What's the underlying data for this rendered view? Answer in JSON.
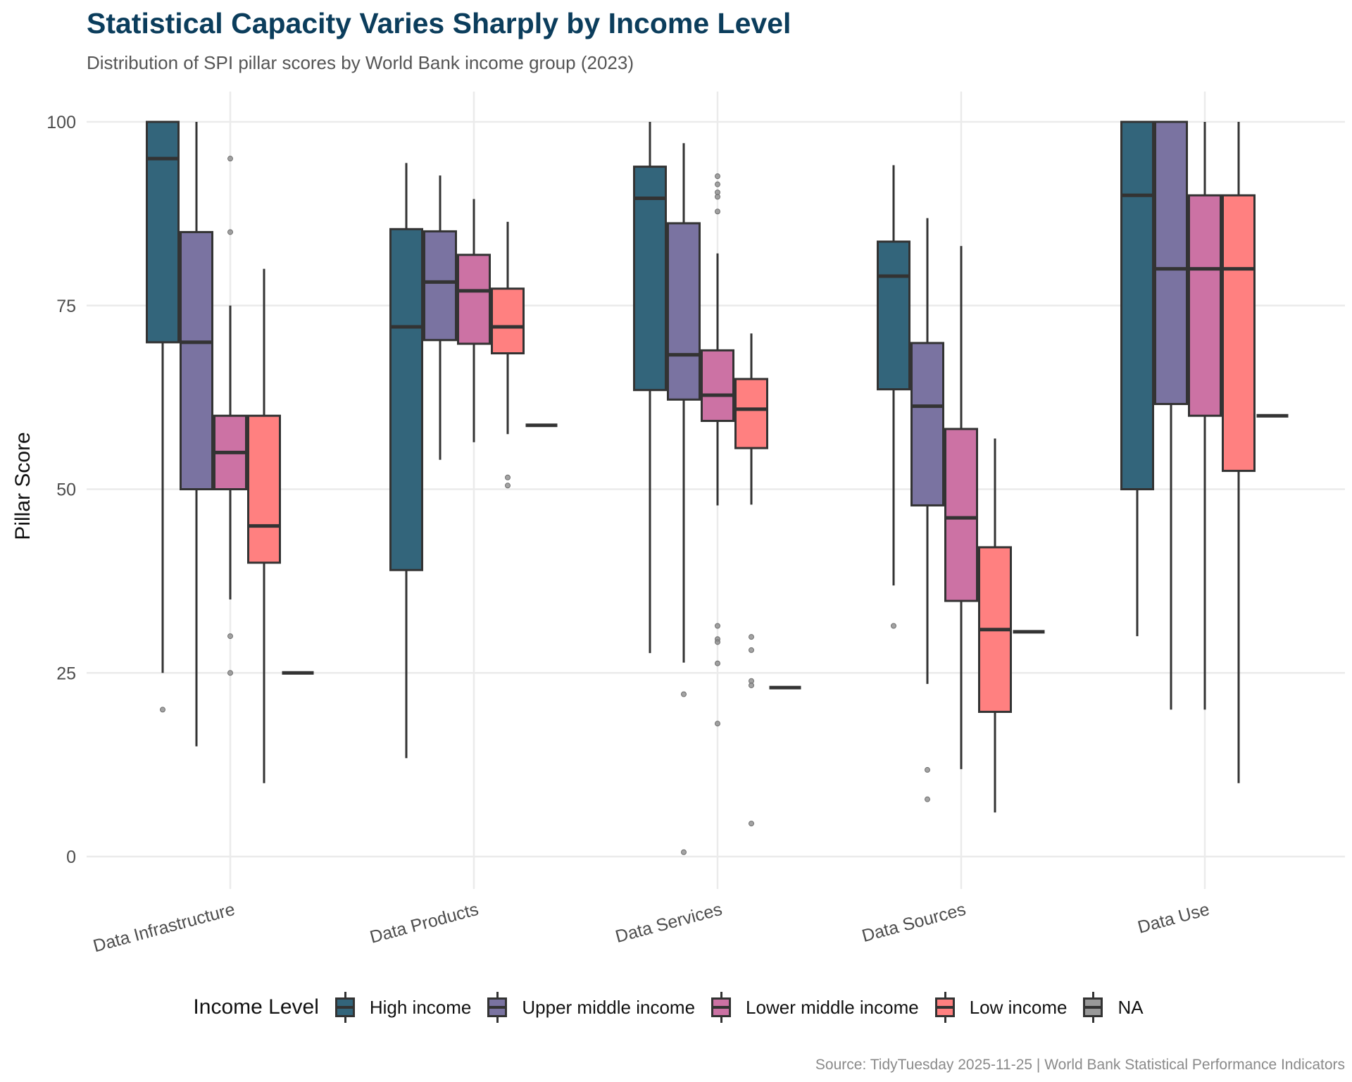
{
  "header": {
    "title": "Statistical Capacity Varies Sharply by Income Level",
    "subtitle": "Distribution of SPI pillar scores by World Bank income group (2023)"
  },
  "caption": "Source: TidyTuesday 2025-11-25 | World Bank Statistical Performance Indicators",
  "chart_data": {
    "type": "boxplot",
    "title": "Statistical Capacity Varies Sharply by Income Level",
    "subtitle": "Distribution of SPI pillar scores by World Bank income group (2023)",
    "xlabel": "",
    "ylabel": "Pillar Score",
    "ylim": [
      0,
      100
    ],
    "yticks": [
      0,
      25,
      50,
      75,
      100
    ],
    "grid": true,
    "legend_title": "Income Level",
    "legend_position": "bottom",
    "categories": [
      "Data Infrastructure",
      "Data Products",
      "Data Services",
      "Data Sources",
      "Data Use"
    ],
    "series": [
      {
        "name": "High income",
        "color": "#33657b",
        "boxes": [
          {
            "lower": 25,
            "q1": 70,
            "median": 95,
            "q3": 100,
            "upper": 100,
            "outliers": [
              20
            ]
          },
          {
            "lower": 13.4,
            "q1": 39,
            "median": 72.1,
            "q3": 85.4,
            "upper": 94.4,
            "outliers": []
          },
          {
            "lower": 27.7,
            "q1": 63.5,
            "median": 89.6,
            "q3": 93.9,
            "upper": 100,
            "outliers": []
          },
          {
            "lower": 36.9,
            "q1": 63.6,
            "median": 79,
            "q3": 83.7,
            "upper": 94.1,
            "outliers": [
              31.4
            ]
          },
          {
            "lower": 30,
            "q1": 50,
            "median": 90,
            "q3": 100,
            "upper": 100,
            "outliers": []
          }
        ]
      },
      {
        "name": "Upper middle income",
        "color": "#7a73a1",
        "boxes": [
          {
            "lower": 15,
            "q1": 50,
            "median": 70,
            "q3": 85,
            "upper": 100,
            "outliers": []
          },
          {
            "lower": 54,
            "q1": 70.3,
            "median": 78.2,
            "q3": 85.1,
            "upper": 92.7,
            "outliers": []
          },
          {
            "lower": 26.4,
            "q1": 62.2,
            "median": 68.3,
            "q3": 86.2,
            "upper": 97.1,
            "outliers": [
              22.1,
              0.6
            ]
          },
          {
            "lower": 23.5,
            "q1": 47.8,
            "median": 61.3,
            "q3": 69.9,
            "upper": 86.9,
            "outliers": [
              11.8,
              7.8
            ]
          },
          {
            "lower": 20,
            "q1": 61.6,
            "median": 80,
            "q3": 100,
            "upper": 100,
            "outliers": []
          }
        ]
      },
      {
        "name": "Lower middle income",
        "color": "#cc72a4",
        "boxes": [
          {
            "lower": 35,
            "q1": 50,
            "median": 55,
            "q3": 60,
            "upper": 75,
            "outliers": [
              95,
              85,
              30,
              25
            ]
          },
          {
            "lower": 56.4,
            "q1": 69.8,
            "median": 77,
            "q3": 81.9,
            "upper": 89.5,
            "outliers": []
          },
          {
            "lower": 47.8,
            "q1": 59.3,
            "median": 62.8,
            "q3": 68.9,
            "upper": 82.1,
            "outliers": [
              92.6,
              91.5,
              90.4,
              89.8,
              87.8,
              31.4,
              29.6,
              29.2,
              26.3,
              18.1
            ]
          },
          {
            "lower": 11.9,
            "q1": 34.8,
            "median": 46.1,
            "q3": 58.2,
            "upper": 83.1,
            "outliers": []
          },
          {
            "lower": 20,
            "q1": 60,
            "median": 80,
            "q3": 90,
            "upper": 100,
            "outliers": []
          }
        ]
      },
      {
        "name": "Low income",
        "color": "#ff8080",
        "boxes": [
          {
            "lower": 10,
            "q1": 40,
            "median": 45,
            "q3": 60,
            "upper": 80,
            "outliers": []
          },
          {
            "lower": 57.5,
            "q1": 68.5,
            "median": 72.1,
            "q3": 77.3,
            "upper": 86.4,
            "outliers": [
              51.6,
              50.5
            ]
          },
          {
            "lower": 47.9,
            "q1": 55.6,
            "median": 60.9,
            "q3": 65,
            "upper": 71.2,
            "outliers": [
              29.9,
              28.1,
              23.9,
              23.3,
              4.5
            ]
          },
          {
            "lower": 6,
            "q1": 19.7,
            "median": 30.9,
            "q3": 42.1,
            "upper": 56.9,
            "outliers": []
          },
          {
            "lower": 10,
            "q1": 52.5,
            "median": 80,
            "q3": 90,
            "upper": 100,
            "outliers": []
          }
        ]
      },
      {
        "name": "NA",
        "color": "#999999",
        "boxes": [
          {
            "lower": 25,
            "q1": 25,
            "median": 25,
            "q3": 25,
            "upper": 25,
            "outliers": []
          },
          {
            "lower": 58.7,
            "q1": 58.7,
            "median": 58.7,
            "q3": 58.7,
            "upper": 58.7,
            "outliers": []
          },
          {
            "lower": 23,
            "q1": 23,
            "median": 23,
            "q3": 23,
            "upper": 23,
            "outliers": []
          },
          {
            "lower": 30.6,
            "q1": 30.6,
            "median": 30.6,
            "q3": 30.6,
            "upper": 30.6,
            "outliers": []
          },
          {
            "lower": 60,
            "q1": 60,
            "median": 60,
            "q3": 60,
            "upper": 60,
            "outliers": []
          }
        ]
      }
    ]
  }
}
